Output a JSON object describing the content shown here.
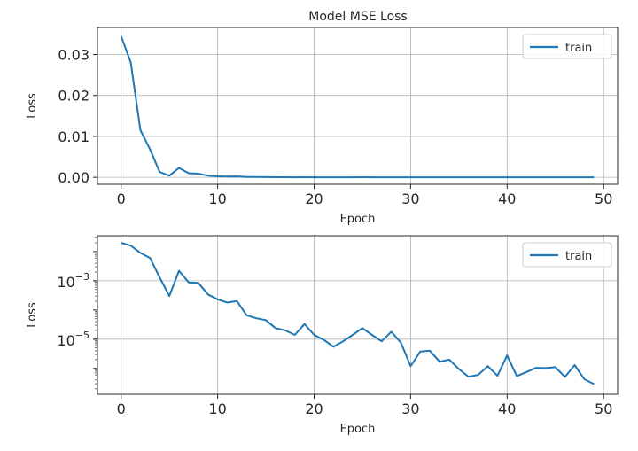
{
  "colors": {
    "line": "#1f77b4",
    "grid": "#b0b0b0",
    "axes": "#262626"
  },
  "chart_data": [
    {
      "type": "line",
      "title": "Model MSE Loss",
      "xlabel": "Epoch",
      "ylabel": "Loss",
      "yscale": "linear",
      "xlim": [
        -2.45,
        51.45
      ],
      "ylim": [
        -0.0017,
        0.0366
      ],
      "xticks": [
        0,
        10,
        20,
        30,
        40,
        50
      ],
      "xtick_labels": [
        "0",
        "10",
        "20",
        "30",
        "40",
        "50"
      ],
      "yticks": [
        0.0,
        0.01,
        0.02,
        0.03
      ],
      "ytick_labels": [
        "0.00",
        "0.01",
        "0.02",
        "0.03"
      ],
      "grid": true,
      "legend": "top-right",
      "series": [
        {
          "name": "train",
          "x": [
            0,
            1,
            2,
            3,
            4,
            5,
            6,
            7,
            8,
            9,
            10,
            11,
            12,
            13,
            14,
            15,
            16,
            17,
            18,
            19,
            20,
            21,
            22,
            23,
            24,
            25,
            26,
            27,
            28,
            29,
            30,
            31,
            32,
            33,
            34,
            35,
            36,
            37,
            38,
            39,
            40,
            41,
            42,
            43,
            44,
            45,
            46,
            47,
            48,
            49
          ],
          "y": [
            0.0345,
            0.028,
            0.0115,
            0.0068,
            0.0013,
            0.0004,
            0.0023,
            0.001,
            0.0009,
            0.0004,
            0.00025,
            0.00019,
            0.00022,
            8e-05,
            7e-05,
            6e-05,
            3e-05,
            3e-05,
            2e-05,
            4e-05,
            2e-05,
            1e-05,
            1e-05,
            1e-05,
            2e-05,
            3e-05,
            2e-05,
            1e-05,
            2e-05,
            1e-05,
            1e-05,
            1e-05,
            1e-05,
            1e-05,
            1e-05,
            1e-05,
            1e-05,
            1e-05,
            1e-05,
            1e-05,
            1e-05,
            1e-05,
            1e-05,
            1e-05,
            1e-05,
            1e-05,
            1e-05,
            1e-05,
            1e-05,
            1e-05
          ]
        }
      ]
    },
    {
      "type": "line",
      "title": "",
      "xlabel": "Epoch",
      "ylabel": "Loss",
      "yscale": "log",
      "xlim": [
        -2.45,
        51.45
      ],
      "ylim": [
        1.3e-07,
        0.035
      ],
      "xticks": [
        0,
        10,
        20,
        30,
        40,
        50
      ],
      "xtick_labels": [
        "0",
        "10",
        "20",
        "30",
        "40",
        "50"
      ],
      "yticks": [
        0.001,
        1e-05
      ],
      "ytick_labels": [
        {
          "base": "10",
          "exp": "−3"
        },
        {
          "base": "10",
          "exp": "−5"
        }
      ],
      "grid": true,
      "legend": "top-right",
      "series": [
        {
          "name": "train",
          "x": [
            0,
            1,
            2,
            3,
            4,
            5,
            6,
            7,
            8,
            9,
            10,
            11,
            12,
            13,
            14,
            15,
            16,
            17,
            18,
            19,
            20,
            21,
            22,
            23,
            24,
            25,
            26,
            27,
            28,
            29,
            30,
            31,
            32,
            33,
            34,
            35,
            36,
            37,
            38,
            39,
            40,
            41,
            42,
            43,
            44,
            45,
            46,
            47,
            48,
            49
          ],
          "y": [
            0.02,
            0.016,
            0.009,
            0.006,
            0.0013,
            0.0003,
            0.0022,
            0.00088,
            0.00085,
            0.00034,
            0.00023,
            0.00018,
            0.0002,
            6.6e-05,
            5.2e-05,
            4.5e-05,
            2.4e-05,
            2e-05,
            1.4e-05,
            3.3e-05,
            1.4e-05,
            9.5e-06,
            5.5e-06,
            8.5e-06,
            1.4e-05,
            2.4e-05,
            1.4e-05,
            8.5e-06,
            1.8e-05,
            7.5e-06,
            1.2e-06,
            3.8e-06,
            4e-06,
            1.7e-06,
            2e-06,
            9.5e-07,
            5.2e-07,
            6e-07,
            1.2e-06,
            5.6e-07,
            2.8e-06,
            5.5e-07,
            7.5e-07,
            1.05e-06,
            1.03e-06,
            1.1e-06,
            5.1e-07,
            1.3e-06,
            4.3e-07,
            2.9e-07
          ]
        }
      ]
    }
  ]
}
